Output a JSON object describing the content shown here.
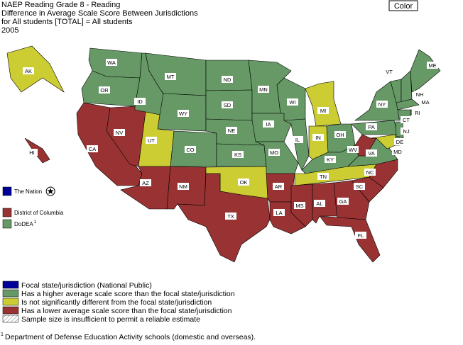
{
  "header": {
    "lines": [
      "NAEP Reading Grade 8 - Reading",
      "Difference in Average Scale Score Between Jurisdictions",
      "for All students [TOTAL] = All students",
      "2005"
    ]
  },
  "button": "Color",
  "states": [
    {
      "label": "WA",
      "color": "#669966"
    },
    {
      "label": "OR",
      "color": "#669966"
    },
    {
      "label": "CA",
      "color": "#993333"
    },
    {
      "label": "NV",
      "color": "#993333"
    },
    {
      "label": "ID",
      "color": "#669966"
    },
    {
      "label": "MT",
      "color": "#669966"
    },
    {
      "label": "WY",
      "color": "#669966"
    },
    {
      "label": "UT",
      "color": "#cccc33"
    },
    {
      "label": "CO",
      "color": "#669966"
    },
    {
      "label": "AZ",
      "color": "#993333"
    },
    {
      "label": "NM",
      "color": "#993333"
    },
    {
      "label": "ND",
      "color": "#669966"
    },
    {
      "label": "SD",
      "color": "#669966"
    },
    {
      "label": "NE",
      "color": "#669966"
    },
    {
      "label": "KS",
      "color": "#669966"
    },
    {
      "label": "OK",
      "color": "#cccc33"
    },
    {
      "label": "TX",
      "color": "#993333"
    },
    {
      "label": "MN",
      "color": "#669966"
    },
    {
      "label": "IA",
      "color": "#669966"
    },
    {
      "label": "MO",
      "color": "#669966"
    },
    {
      "label": "AR",
      "color": "#993333"
    },
    {
      "label": "LA",
      "color": "#993333"
    },
    {
      "label": "WI",
      "color": "#669966"
    },
    {
      "label": "IL",
      "color": "#669966"
    },
    {
      "label": "MI",
      "color": "#cccc33"
    },
    {
      "label": "IN",
      "color": "#cccc33"
    },
    {
      "label": "OH",
      "color": "#669966"
    },
    {
      "label": "KY",
      "color": "#669966"
    },
    {
      "label": "TN",
      "color": "#cccc33"
    },
    {
      "label": "MS",
      "color": "#993333"
    },
    {
      "label": "AL",
      "color": "#993333"
    },
    {
      "label": "GA",
      "color": "#993333"
    },
    {
      "label": "FL",
      "color": "#993333"
    },
    {
      "label": "SC",
      "color": "#993333"
    },
    {
      "label": "NC",
      "color": "#993333"
    },
    {
      "label": "VA",
      "color": "#669966"
    },
    {
      "label": "WV",
      "color": "#993333"
    },
    {
      "label": "PA",
      "color": "#669966"
    },
    {
      "label": "NY",
      "color": "#669966"
    },
    {
      "label": "VT",
      "color": "#669966"
    },
    {
      "label": "NH",
      "color": "#669966"
    },
    {
      "label": "ME",
      "color": "#669966"
    },
    {
      "label": "MA",
      "color": "#669966"
    },
    {
      "label": "RI",
      "color": "#669966"
    },
    {
      "label": "CT",
      "color": "#669966"
    },
    {
      "label": "NJ",
      "color": "#669966"
    },
    {
      "label": "DE",
      "color": "#669966"
    },
    {
      "label": "MD",
      "color": "#cccc33"
    },
    {
      "label": "AK",
      "color": "#cccc33"
    },
    {
      "label": "HI",
      "color": "#993333"
    }
  ],
  "side_legend": [
    {
      "label": "The Nation",
      "color": "#000099"
    },
    {
      "label": "District of Columbia",
      "color": "#993333"
    },
    {
      "label": "DoDEA",
      "note": "1",
      "color": "#669966"
    }
  ],
  "legend": [
    {
      "label": "Focal state/jurisdiction (National Public)",
      "color": "#000099"
    },
    {
      "label": "Has a higher average scale score than the focal state/jurisdiction",
      "color": "#669966"
    },
    {
      "label": "Is not significantly different from the focal state/jurisdiction",
      "color": "#cccc33"
    },
    {
      "label": "Has a lower average scale score than the focal state/jurisdiction",
      "color": "#993333"
    },
    {
      "label": "Sample size is insufficient to permit a reliable estimate",
      "pattern": "hatch"
    }
  ],
  "footnote": {
    "mark": "1",
    "text": "Department of Defense Education Activity schools (domestic and overseas)."
  }
}
